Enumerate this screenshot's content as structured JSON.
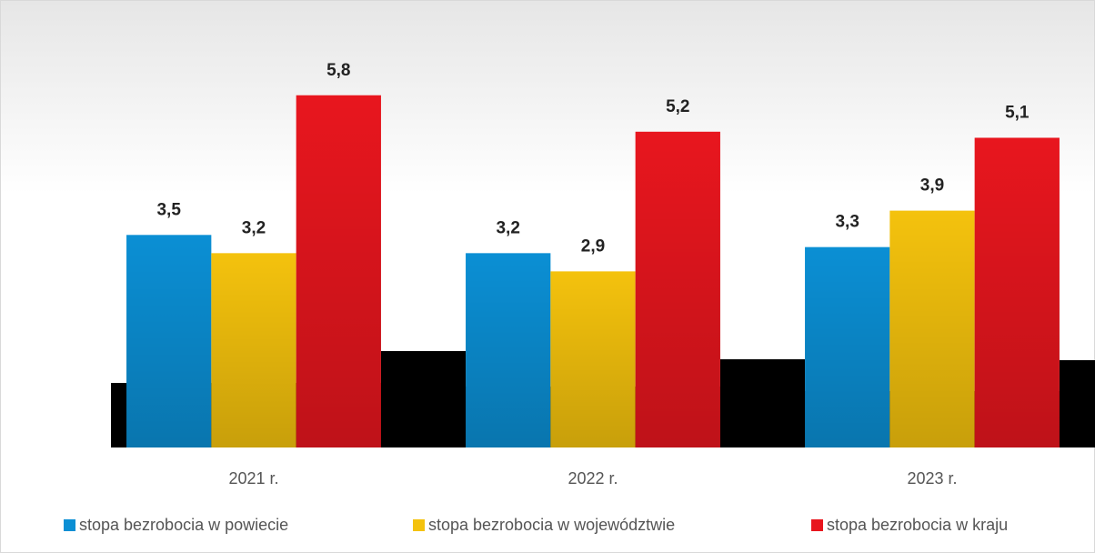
{
  "chart_data": {
    "type": "bar",
    "categories": [
      "2021 r.",
      "2022 r.",
      "2023 r."
    ],
    "series": [
      {
        "name": "stopa bezrobocia w powiecie",
        "color": "#0b8fd4",
        "values": [
          3.5,
          3.2,
          3.3
        ],
        "value_labels": [
          "3,5",
          "3,2",
          "3,3"
        ]
      },
      {
        "name": "stopa bezrobocia w województwie",
        "color": "#f4c20d",
        "values": [
          3.2,
          2.9,
          3.9
        ],
        "value_labels": [
          "3,2",
          "2,9",
          "3,9"
        ]
      },
      {
        "name": "stopa bezrobocia w kraju",
        "color": "#e8161e",
        "values": [
          5.8,
          5.2,
          5.1
        ],
        "value_labels": [
          "5,8",
          "5,2",
          "5,1"
        ]
      }
    ],
    "ylim": [
      0,
      6.5
    ],
    "legend": "bottom"
  }
}
